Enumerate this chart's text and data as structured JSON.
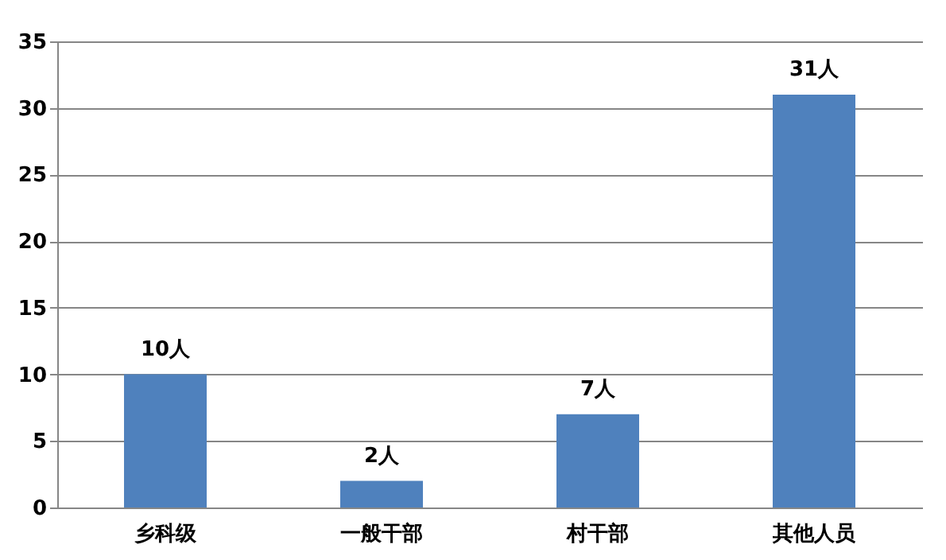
{
  "chart_data": {
    "type": "bar",
    "categories": [
      "乡科级",
      "一般干部",
      "村干部",
      "其他人员"
    ],
    "values": [
      10,
      2,
      7,
      31
    ],
    "value_labels": [
      "10人",
      "2人",
      "7人",
      "31人"
    ],
    "color": "#4f81bd",
    "ylim": [
      0,
      35
    ],
    "yticks": [
      0,
      5,
      10,
      15,
      20,
      25,
      30,
      35
    ],
    "grid": "y"
  }
}
